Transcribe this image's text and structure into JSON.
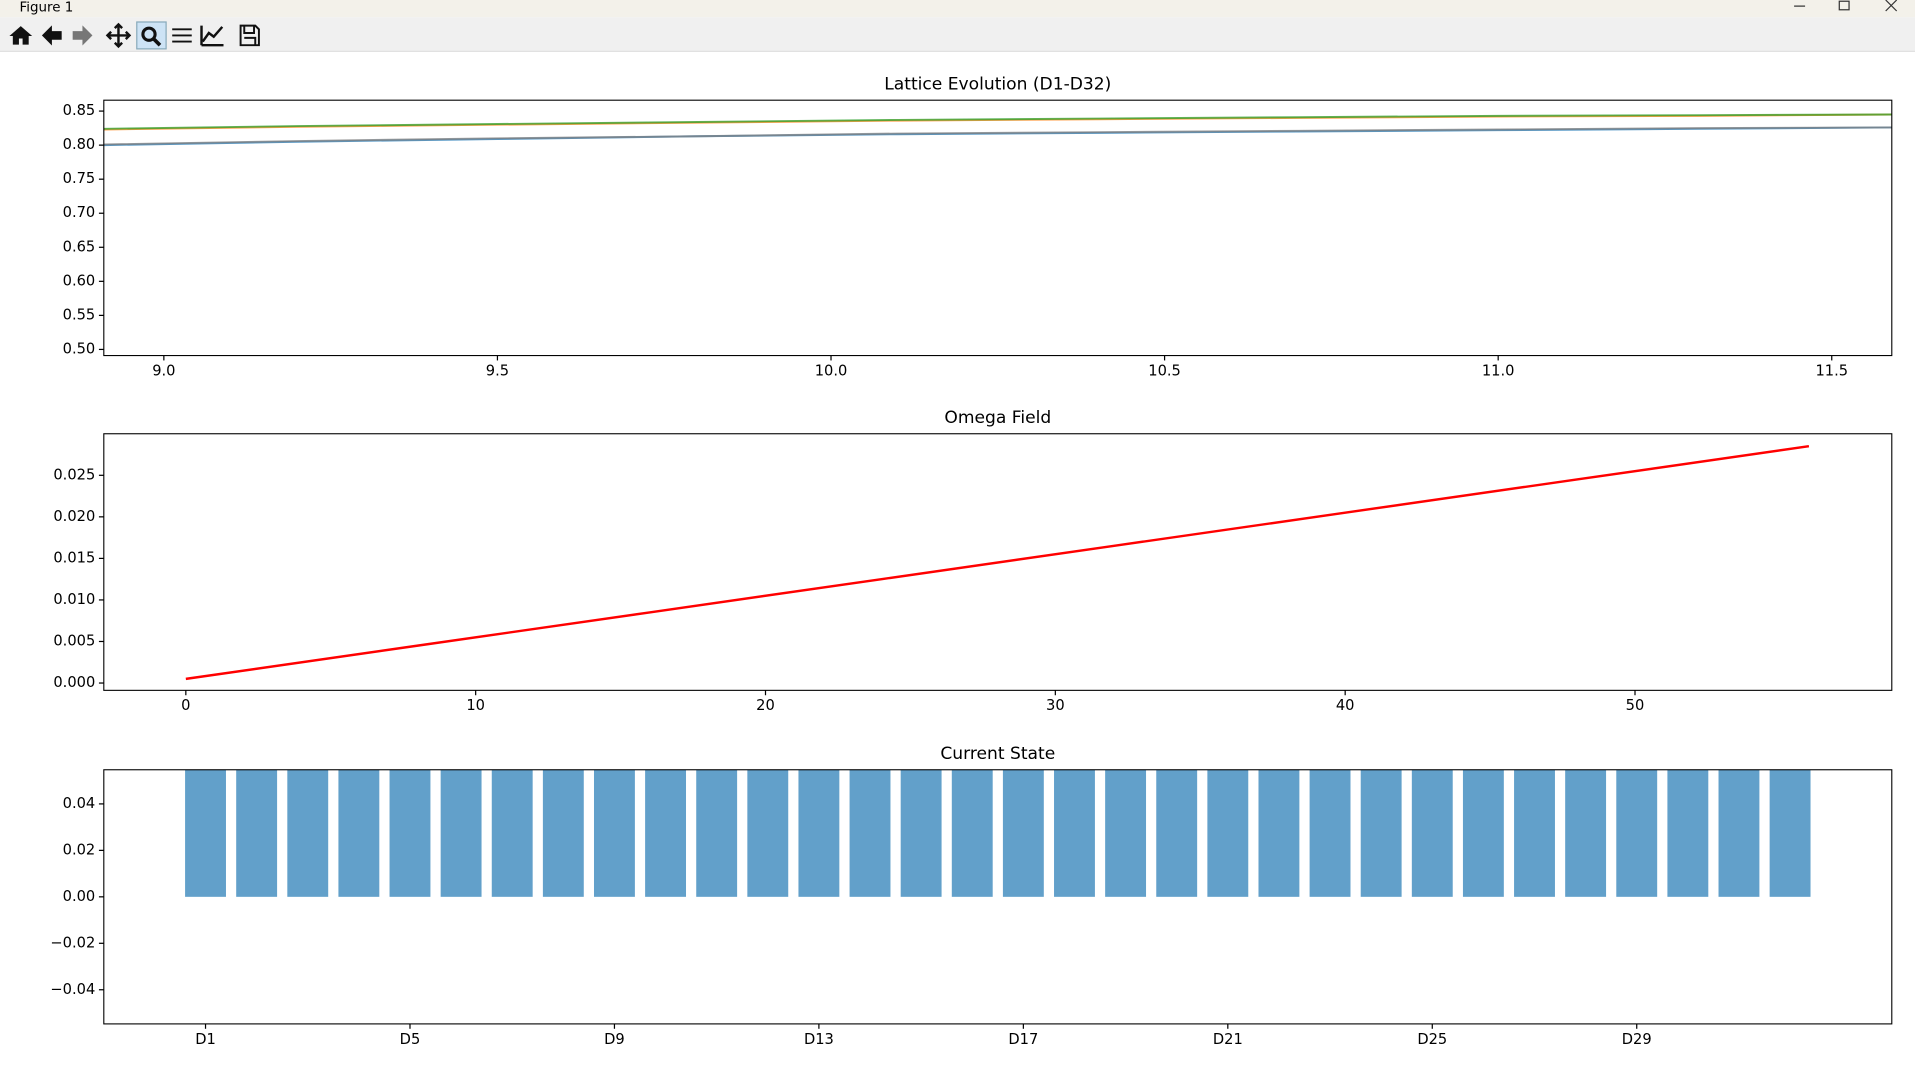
{
  "window": {
    "title": "Figure 1"
  },
  "chart_data": [
    {
      "type": "line",
      "title": "Lattice Evolution (D1-D32)",
      "x": [
        8.91,
        9.2,
        9.5,
        9.8,
        10.1,
        10.4,
        10.7,
        11.0,
        11.3,
        11.59
      ],
      "series": [
        {
          "color": "#1f77b4",
          "values": [
            0.8,
            0.805,
            0.809,
            0.813,
            0.816,
            0.818,
            0.82,
            0.822,
            0.824,
            0.826
          ]
        },
        {
          "color": "#7f7f7f",
          "values": [
            0.801,
            0.806,
            0.81,
            0.813,
            0.817,
            0.819,
            0.821,
            0.823,
            0.825,
            0.826
          ]
        },
        {
          "color": "#ff7f0e",
          "values": [
            0.823,
            0.827,
            0.83,
            0.833,
            0.836,
            0.838,
            0.84,
            0.842,
            0.843,
            0.845
          ]
        },
        {
          "color": "#2ca02c",
          "values": [
            0.824,
            0.828,
            0.831,
            0.834,
            0.837,
            0.839,
            0.841,
            0.843,
            0.844,
            0.845
          ]
        }
      ],
      "xlim": [
        8.91,
        11.59
      ],
      "xticks": [
        {
          "value": 9,
          "label": "9.0"
        },
        9.5,
        {
          "value": 10,
          "label": "10.0"
        },
        10.5,
        {
          "value": 11,
          "label": "11.0"
        },
        11.5
      ],
      "ylim": [
        0.491,
        0.866
      ],
      "yticks": [
        {
          "value": 0.5,
          "label": "0.50"
        },
        0.55,
        {
          "value": 0.6,
          "label": "0.60"
        },
        0.65,
        {
          "value": 0.7,
          "label": "0.70"
        },
        0.75,
        {
          "value": 0.8,
          "label": "0.80"
        },
        0.85
      ]
    },
    {
      "type": "line",
      "title": "Omega Field",
      "x": [
        0,
        8,
        16,
        24,
        32,
        40,
        48,
        56
      ],
      "series": [
        {
          "color": "#ff0000",
          "values": [
            0.0005,
            0.0045,
            0.0085,
            0.0125,
            0.0165,
            0.0205,
            0.0245,
            0.0285
          ]
        }
      ],
      "xlim": [
        -2.83,
        58.86
      ],
      "xticks": [
        0,
        10,
        20,
        30,
        40,
        50
      ],
      "ylim": [
        -0.00088,
        0.03
      ],
      "yticks": [
        {
          "value": 0,
          "label": "0.000"
        },
        0.005,
        {
          "value": 0.01,
          "label": "0.010"
        },
        0.015,
        {
          "value": 0.02,
          "label": "0.020"
        },
        0.025
      ]
    },
    {
      "type": "bar",
      "title": "Current State",
      "categories": [
        "D1",
        null,
        null,
        null,
        "D5",
        null,
        null,
        null,
        "D9",
        null,
        null,
        null,
        "D13",
        null,
        null,
        null,
        "D17",
        null,
        null,
        null,
        "D21",
        null,
        null,
        null,
        "D25",
        null,
        null,
        null,
        "D29",
        null,
        null,
        null
      ],
      "values": [
        0.06,
        0.06,
        0.06,
        0.06,
        0.06,
        0.06,
        0.06,
        0.06,
        0.06,
        0.06,
        0.06,
        0.06,
        0.06,
        0.06,
        0.06,
        0.06,
        0.06,
        0.06,
        0.06,
        0.06,
        0.06,
        0.06,
        0.06,
        0.06,
        0.06,
        0.06,
        0.06,
        0.06,
        0.06,
        0.06,
        0.06,
        0.06
      ],
      "color": "#1f77b4",
      "ylim": [
        -0.0547,
        0.0547
      ],
      "yticks": [
        {
          "value": -0.04,
          "label": "−0.04"
        },
        {
          "value": -0.02,
          "label": "−0.02"
        },
        {
          "value": 0,
          "label": "0.00"
        },
        0.02,
        0.04
      ]
    }
  ]
}
